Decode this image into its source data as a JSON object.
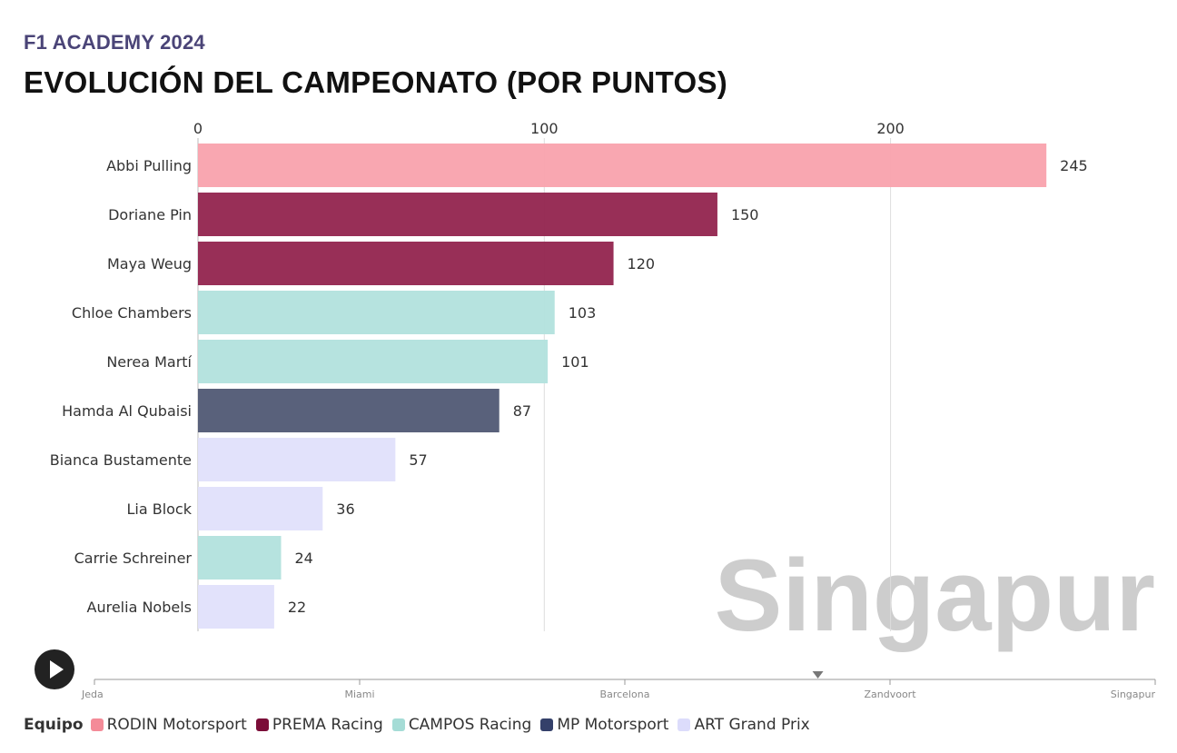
{
  "header": {
    "kicker": "F1 ACADEMY 2024",
    "title": "EVOLUCIÓN DEL CAMPEONATO (POR PUNTOS)"
  },
  "chart_data": {
    "type": "bar",
    "orientation": "horizontal",
    "xlim": [
      0,
      250
    ],
    "x_ticks": [
      0,
      100,
      200
    ],
    "grid": true,
    "watermark_label": "Singapur",
    "categories": [
      "Abbi Pulling",
      "Doriane Pin",
      "Maya Weug",
      "Chloe Chambers",
      "Nerea Martí",
      "Hamda Al Qubaisi",
      "Bianca Bustamente",
      "Lia Block",
      "Carrie Schreiner",
      "Aurelia Nobels"
    ],
    "values": [
      245,
      150,
      120,
      103,
      101,
      87,
      57,
      36,
      24,
      22
    ],
    "teams": [
      "RODIN Motorsport",
      "PREMA Racing",
      "PREMA Racing",
      "CAMPOS Racing",
      "CAMPOS Racing",
      "MP Motorsport",
      "ART Grand Prix",
      "ART Grand Prix",
      "CAMPOS Racing",
      "ART Grand Prix"
    ],
    "team_colors": {
      "RODIN Motorsport": "#f9a2ad",
      "PREMA Racing": "#92244e",
      "CAMPOS Racing": "#b2e1dd",
      "MP Motorsport": "#505874",
      "ART Grand Prix": "#e0e0fb"
    }
  },
  "timeline": {
    "stops": [
      "Jeda",
      "Miami",
      "Barcelona",
      "Zandvoort",
      "Singapur"
    ],
    "current_fraction": 0.682,
    "play_icon": "play-icon"
  },
  "legend": {
    "title": "Equipo",
    "items": [
      {
        "label": "RODIN Motorsport",
        "color": "#f48b98"
      },
      {
        "label": "PREMA Racing",
        "color": "#7b0d38"
      },
      {
        "label": "CAMPOS Racing",
        "color": "#a5dcd6"
      },
      {
        "label": "MP Motorsport",
        "color": "#34406a"
      },
      {
        "label": "ART Grand Prix",
        "color": "#dcdcfb"
      }
    ]
  }
}
